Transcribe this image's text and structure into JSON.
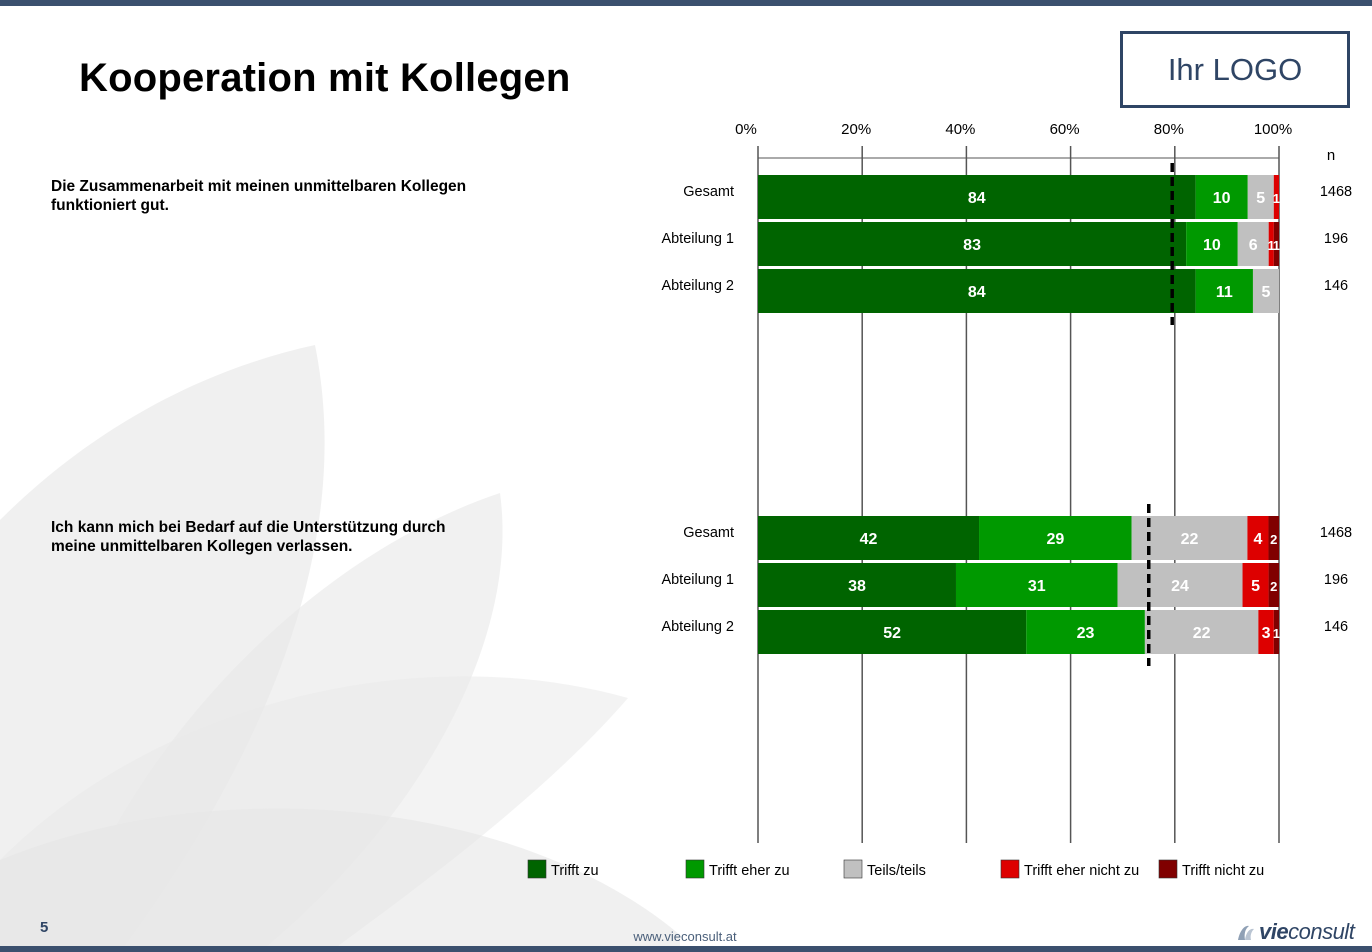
{
  "page": {
    "title": "Kooperation mit Kollegen",
    "logo_text": "Ihr LOGO",
    "page_number": "5",
    "footer_url": "www.vieconsult.at",
    "brand_prefix": "vie",
    "brand_suffix": "consult"
  },
  "colors": {
    "header_bar": "#3b506e",
    "trifft_zu": "#006400",
    "trifft_eher_zu": "#009900",
    "teils": "#c0c0c0",
    "trifft_eher_nicht_zu": "#dd0000",
    "trifft_nicht_zu": "#800000"
  },
  "chart_data": {
    "type": "bar",
    "orientation": "horizontal",
    "stacked": true,
    "x_ticks": [
      "0%",
      "20%",
      "40%",
      "60%",
      "80%",
      "100%"
    ],
    "xlim": [
      0,
      100
    ],
    "n_header": "n",
    "legend": [
      {
        "label": "Trifft zu",
        "color": "#006400"
      },
      {
        "label": "Trifft eher zu",
        "color": "#009900"
      },
      {
        "label": "Teils/teils",
        "color": "#c0c0c0"
      },
      {
        "label": "Trifft eher nicht zu",
        "color": "#dd0000"
      },
      {
        "label": "Trifft nicht zu",
        "color": "#800000"
      }
    ],
    "groups": [
      {
        "question": "Die Zusammenarbeit mit meinen unmittelbaren Kollegen funktioniert gut.",
        "reference_line": 79.5,
        "rows": [
          {
            "label": "Gesamt",
            "n": "1468",
            "values": [
              84,
              10,
              5,
              1,
              0
            ]
          },
          {
            "label": "Abteilung 1",
            "n": "196",
            "values": [
              83,
              10,
              6,
              1,
              1
            ]
          },
          {
            "label": "Abteilung 2",
            "n": "146",
            "values": [
              84,
              11,
              5,
              0,
              0
            ]
          }
        ]
      },
      {
        "question": "Ich kann mich bei Bedarf auf die Unterstützung durch meine unmittelbaren Kollegen verlassen.",
        "reference_line": 75,
        "rows": [
          {
            "label": "Gesamt",
            "n": "1468",
            "values": [
              42,
              29,
              22,
              4,
              2
            ]
          },
          {
            "label": "Abteilung 1",
            "n": "196",
            "values": [
              38,
              31,
              24,
              5,
              2
            ]
          },
          {
            "label": "Abteilung 2",
            "n": "146",
            "values": [
              52,
              23,
              22,
              3,
              1
            ]
          }
        ]
      }
    ]
  }
}
